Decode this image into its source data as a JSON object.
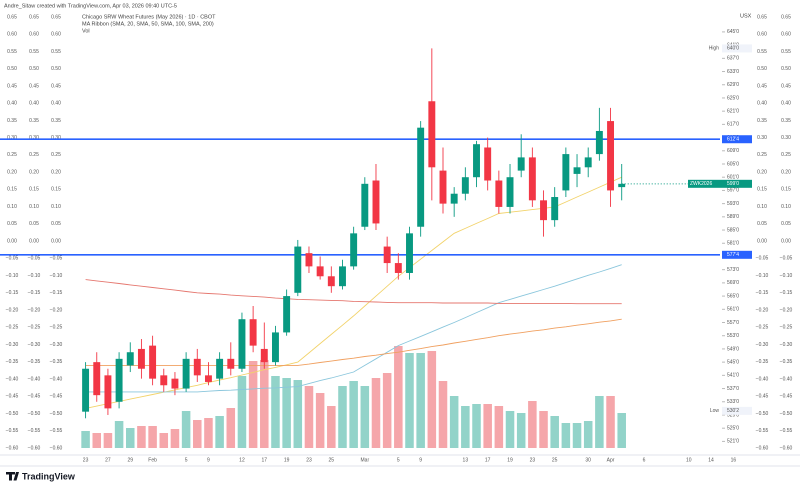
{
  "header": {
    "credit": "Andre_Sitaw created with TradingView.com, Apr 03, 2026 09:40 UTC-5",
    "symbol": "Chicago SRW Wheat Futures (May 2026) · 1D · CBOT",
    "indicator": "MA Ribbon (SMA, 20, SMA, 50, SMA, 100, SMA, 200)",
    "volume": "Vol",
    "currency": "USX",
    "brand": "TradingView"
  },
  "chart_data": {
    "type": "candlestick",
    "up_color": "#089981",
    "down_color": "#f23645",
    "up_volume_color": "#92d3c9",
    "down_volume_color": "#f5a6aa",
    "open": [
      530,
      545,
      541,
      533,
      544,
      549,
      550,
      541,
      540,
      537,
      546,
      541,
      540,
      546,
      543,
      558,
      549,
      545,
      554,
      566,
      578,
      574,
      571,
      568,
      574,
      586,
      600,
      580,
      575,
      572,
      586,
      624,
      603,
      593,
      596,
      601,
      610,
      600,
      592,
      603,
      607,
      594,
      588,
      597,
      602,
      604,
      608,
      618,
      598
    ],
    "high": [
      545,
      548,
      543,
      548,
      551,
      552,
      553,
      543,
      542,
      548,
      549,
      545,
      548,
      551,
      560,
      562,
      557,
      556,
      567,
      582,
      580,
      577,
      574,
      576,
      586,
      601,
      605,
      583,
      578,
      586,
      618,
      640,
      610,
      598,
      604,
      612,
      613,
      603,
      605,
      614,
      610,
      597,
      598,
      610,
      608,
      610,
      622,
      622,
      605
    ],
    "low": [
      528,
      533,
      529,
      531,
      542,
      540,
      538,
      536,
      535,
      536,
      539,
      538,
      538,
      541,
      542,
      548,
      543,
      544,
      553,
      565,
      572,
      570,
      566,
      567,
      573,
      585,
      585,
      572,
      570,
      570,
      583,
      594,
      590,
      589,
      594,
      598,
      597,
      590,
      590,
      601,
      592,
      583,
      586,
      595,
      598,
      601,
      606,
      592,
      594
    ],
    "close": [
      543,
      535,
      531,
      546,
      548,
      543,
      540,
      538,
      537,
      546,
      541,
      539,
      546,
      543,
      558,
      550,
      545,
      554,
      565,
      580,
      574,
      571,
      568,
      574,
      584,
      599,
      587,
      575,
      572,
      584,
      616,
      604,
      593,
      596,
      601,
      611,
      600,
      592,
      601,
      607,
      594,
      588,
      595,
      608,
      604,
      607,
      615,
      597,
      599
    ],
    "volume": [
      17,
      15,
      15,
      27,
      20,
      22,
      22,
      15,
      19,
      37,
      28,
      30,
      32,
      40,
      72,
      87,
      88,
      72,
      70,
      68,
      62,
      55,
      42,
      62,
      67,
      62,
      70,
      75,
      102,
      95,
      95,
      97,
      67,
      52,
      42,
      44,
      44,
      42,
      37,
      35,
      47,
      37,
      32,
      25,
      25,
      27,
      52,
      52,
      35
    ],
    "vlim": [
      0,
      120
    ],
    "moving_averages": [
      {
        "color": "#f2d36b",
        "values": [
          531,
          531.7,
          532.4,
          533.1,
          533.8,
          534.5,
          535.2,
          535.9,
          536.6,
          537.3,
          538,
          538.8,
          539.6,
          540.3,
          541.1,
          541.9,
          542.7,
          543.4,
          544.2,
          545,
          547.8,
          550.6,
          553.4,
          556.2,
          559,
          562,
          565,
          568,
          571,
          573.6,
          576.2,
          578.8,
          581.4,
          584,
          585.5,
          587,
          588.5,
          590,
          590.4,
          590.8,
          591.2,
          591.6,
          592,
          593.5,
          595,
          596.5,
          598,
          599.5,
          601
        ]
      },
      {
        "color": "#8ac6dc",
        "values": [
          536,
          536,
          536,
          536,
          536,
          536,
          536,
          536,
          536,
          536,
          536,
          536.2,
          536.4,
          536.5,
          536.7,
          536.9,
          537.1,
          537.2,
          537.4,
          537.6,
          538.5,
          539.4,
          540.2,
          541.1,
          542,
          544,
          546,
          548,
          550,
          551.4,
          552.8,
          554.2,
          555.6,
          557,
          558.5,
          560,
          561.5,
          563,
          564,
          565,
          566,
          567,
          568,
          569.1,
          570.2,
          571.3,
          572.3,
          573.4,
          574.5
        ]
      },
      {
        "color": "#f0a060",
        "values": [
          544,
          544,
          544,
          544,
          544,
          544,
          544,
          544,
          544,
          544,
          544,
          544,
          544,
          544,
          544,
          544,
          544,
          544,
          544,
          544,
          544.4,
          544.9,
          545.3,
          545.8,
          546.2,
          546.7,
          547.1,
          547.6,
          548,
          548.6,
          549.1,
          549.7,
          550.2,
          550.8,
          551.3,
          551.9,
          552.4,
          553,
          553.5,
          553.9,
          554.4,
          554.8,
          555.3,
          555.7,
          556.2,
          556.6,
          557.1,
          557.5,
          558
        ]
      },
      {
        "color": "#e5776f",
        "values": [
          570,
          569.6,
          569.2,
          568.8,
          568.4,
          568,
          567.6,
          567.2,
          566.8,
          566.4,
          566,
          565.8,
          565.6,
          565.3,
          565.1,
          564.9,
          564.7,
          564.4,
          564.2,
          564,
          563.9,
          563.8,
          563.7,
          563.6,
          563.4,
          563.3,
          563.2,
          563.1,
          563,
          563,
          563,
          563,
          562.9,
          562.9,
          562.9,
          562.9,
          562.9,
          562.8,
          562.8,
          562.8,
          562.8,
          562.8,
          562.8,
          562.8,
          562.7,
          562.7,
          562.7,
          562.7,
          562.7
        ]
      }
    ],
    "hlines": [
      {
        "value": 612.5,
        "label": "612'4",
        "color": "#2962ff"
      },
      {
        "value": 577.5,
        "label": "577'4",
        "color": "#2962ff"
      }
    ],
    "last_price": {
      "name": "ZWK2026",
      "value": 599,
      "label": "599'0",
      "color": "#089981"
    },
    "extremes": [
      {
        "text": "High",
        "value": 640,
        "label": "640'0"
      },
      {
        "text": "Low",
        "value": 530.25,
        "label": "530'2"
      }
    ],
    "xlim": [
      -0.5,
      56.8
    ],
    "xticks": [
      {
        "value": 0,
        "label": "23"
      },
      {
        "value": 2,
        "label": "27"
      },
      {
        "value": 4,
        "label": "29"
      },
      {
        "value": 6,
        "label": "Feb"
      },
      {
        "value": 9,
        "label": "5"
      },
      {
        "value": 11,
        "label": "9"
      },
      {
        "value": 14,
        "label": "12"
      },
      {
        "value": 16,
        "label": "17"
      },
      {
        "value": 18,
        "label": "19"
      },
      {
        "value": 20,
        "label": "23"
      },
      {
        "value": 22,
        "label": "25"
      },
      {
        "value": 25,
        "label": "Mar"
      },
      {
        "value": 28,
        "label": "5"
      },
      {
        "value": 30,
        "label": "9"
      },
      {
        "value": 34,
        "label": "13"
      },
      {
        "value": 36,
        "label": "17"
      },
      {
        "value": 38,
        "label": "19"
      },
      {
        "value": 40,
        "label": "23"
      },
      {
        "value": 42,
        "label": "25"
      },
      {
        "value": 45,
        "label": "30"
      },
      {
        "value": 47,
        "label": "Apr"
      },
      {
        "value": 50,
        "label": "6"
      },
      {
        "value": 54,
        "label": "10"
      },
      {
        "value": 56,
        "label": "14"
      },
      {
        "value": 58,
        "label": "16"
      }
    ],
    "ylim": [
      519,
      648
    ],
    "yticks": [
      {
        "value": 645,
        "label": "645'0"
      },
      {
        "value": 641,
        "label": "641'0"
      },
      {
        "value": 637,
        "label": "637'0"
      },
      {
        "value": 633,
        "label": "633'0"
      },
      {
        "value": 629,
        "label": "629'0"
      },
      {
        "value": 625,
        "label": "625'0"
      },
      {
        "value": 621,
        "label": "621'0"
      },
      {
        "value": 617,
        "label": "617'0"
      },
      {
        "value": 613,
        "label": "613'0"
      },
      {
        "value": 609,
        "label": "609'0"
      },
      {
        "value": 605,
        "label": "605'0"
      },
      {
        "value": 601,
        "label": "601'0"
      },
      {
        "value": 597,
        "label": "597'0"
      },
      {
        "value": 593,
        "label": "593'0"
      },
      {
        "value": 589,
        "label": "589'0"
      },
      {
        "value": 585,
        "label": "585'0"
      },
      {
        "value": 581,
        "label": "581'0"
      },
      {
        "value": 577,
        "label": "577'0"
      },
      {
        "value": 573,
        "label": "573'0"
      },
      {
        "value": 569,
        "label": "569'0"
      },
      {
        "value": 565,
        "label": "565'0"
      },
      {
        "value": 561,
        "label": "561'0"
      },
      {
        "value": 557,
        "label": "557'0"
      },
      {
        "value": 553,
        "label": "553'0"
      },
      {
        "value": 549,
        "label": "549'0"
      },
      {
        "value": 545,
        "label": "545'0"
      },
      {
        "value": 541,
        "label": "541'0"
      },
      {
        "value": 537,
        "label": "537'0"
      },
      {
        "value": 533,
        "label": "533'0"
      },
      {
        "value": 529,
        "label": "529'0"
      },
      {
        "value": 525,
        "label": "525'0"
      },
      {
        "value": 521,
        "label": "521'0"
      }
    ],
    "y2lim": [
      -0.6,
      0.65
    ],
    "y2ticks": [
      {
        "value": 0.65,
        "label": "0.65"
      },
      {
        "value": 0.6,
        "label": "0.60"
      },
      {
        "value": 0.55,
        "label": "0.55"
      },
      {
        "value": 0.5,
        "label": "0.50"
      },
      {
        "value": 0.45,
        "label": "0.45"
      },
      {
        "value": 0.4,
        "label": "0.40"
      },
      {
        "value": 0.35,
        "label": "0.35"
      },
      {
        "value": 0.3,
        "label": "0.30"
      },
      {
        "value": 0.25,
        "label": "0.25"
      },
      {
        "value": 0.2,
        "label": "0.20"
      },
      {
        "value": 0.15,
        "label": "0.15"
      },
      {
        "value": 0.1,
        "label": "0.10"
      },
      {
        "value": 0.05,
        "label": "0.05"
      },
      {
        "value": 0,
        "label": "0.00"
      },
      {
        "value": -0.05,
        "label": "−0.05"
      },
      {
        "value": -0.1,
        "label": "−0.10"
      },
      {
        "value": -0.15,
        "label": "−0.15"
      },
      {
        "value": -0.2,
        "label": "−0.20"
      },
      {
        "value": -0.25,
        "label": "−0.25"
      },
      {
        "value": -0.3,
        "label": "−0.30"
      },
      {
        "value": -0.35,
        "label": "−0.35"
      },
      {
        "value": -0.4,
        "label": "−0.40"
      },
      {
        "value": -0.45,
        "label": "−0.45"
      },
      {
        "value": -0.5,
        "label": "−0.50"
      },
      {
        "value": -0.55,
        "label": "−0.55"
      },
      {
        "value": -0.6,
        "label": "−0.60"
      }
    ]
  }
}
